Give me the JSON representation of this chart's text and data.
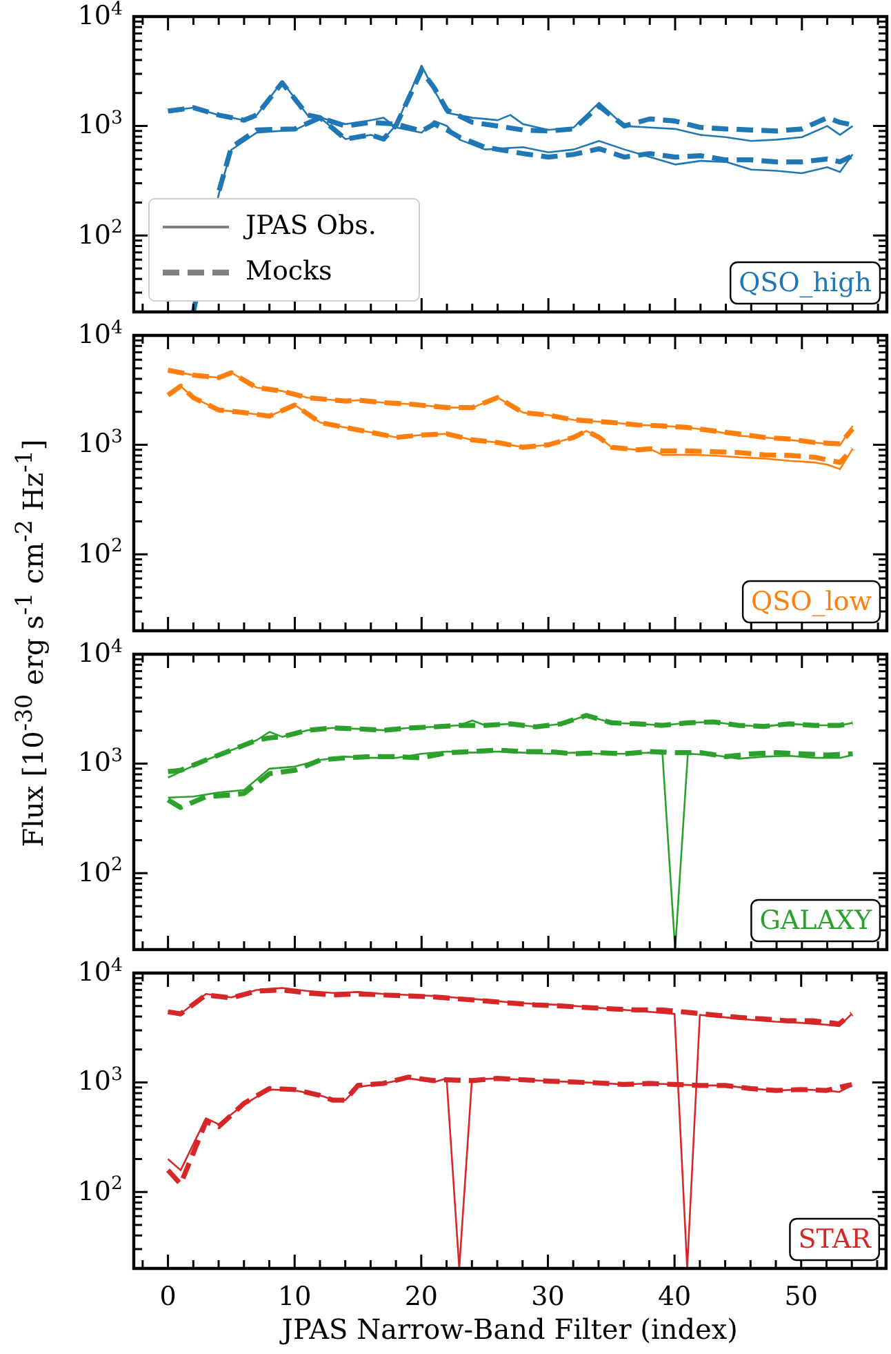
{
  "chart_data": [
    {
      "type": "line",
      "title": "QSO_high",
      "ylabel": "Flux [10$^{-30}$ erg s$^{-1}$ cm$^{-2}$ Hz$^{-1}$]",
      "log": "y",
      "grid": false,
      "marker": "none",
      "legend": "bottom left",
      "tick_labels": "y",
      "xlim": [
        -2.7,
        56.7
      ],
      "ylim": [
        20,
        10000
      ],
      "xticks": [
        {
          "value": -2,
          "label": null
        },
        0,
        {
          "value": 2,
          "label": null
        },
        {
          "value": 4,
          "label": null
        },
        {
          "value": 6,
          "label": null
        },
        {
          "value": 8,
          "label": null
        },
        10,
        {
          "value": 12,
          "label": null
        },
        {
          "value": 14,
          "label": null
        },
        {
          "value": 16,
          "label": null
        },
        {
          "value": 18,
          "label": null
        },
        20,
        {
          "value": 22,
          "label": null
        },
        {
          "value": 24,
          "label": null
        },
        {
          "value": 26,
          "label": null
        },
        {
          "value": 28,
          "label": null
        },
        30,
        {
          "value": 32,
          "label": null
        },
        {
          "value": 34,
          "label": null
        },
        {
          "value": 36,
          "label": null
        },
        {
          "value": 38,
          "label": null
        },
        40,
        {
          "value": 42,
          "label": null
        },
        {
          "value": 44,
          "label": null
        },
        {
          "value": 46,
          "label": null
        },
        {
          "value": 48,
          "label": null
        },
        50,
        {
          "value": 52,
          "label": null
        },
        {
          "value": 54,
          "label": null
        },
        {
          "value": 56,
          "label": null
        }
      ],
      "yticks": [
        {
          "value": 20,
          "label": null
        },
        {
          "value": 30,
          "label": null
        },
        {
          "value": 40,
          "label": null
        },
        {
          "value": 50,
          "label": null
        },
        {
          "value": 60,
          "label": null
        },
        {
          "value": 70,
          "label": null
        },
        {
          "value": 80,
          "label": null
        },
        {
          "value": 90,
          "label": null
        },
        {
          "value": 100,
          "label": "10$^{2}$"
        },
        {
          "value": 200,
          "label": null
        },
        {
          "value": 300,
          "label": null
        },
        {
          "value": 400,
          "label": null
        },
        {
          "value": 500,
          "label": null
        },
        {
          "value": 600,
          "label": null
        },
        {
          "value": 700,
          "label": null
        },
        {
          "value": 800,
          "label": null
        },
        {
          "value": 900,
          "label": null
        },
        {
          "value": 1000,
          "label": "10$^{3}$"
        },
        {
          "value": 2000,
          "label": null
        },
        {
          "value": 3000,
          "label": null
        },
        {
          "value": 4000,
          "label": null
        },
        {
          "value": 5000,
          "label": null
        },
        {
          "value": 6000,
          "label": null
        },
        {
          "value": 7000,
          "label": null
        },
        {
          "value": 8000,
          "label": null
        },
        {
          "value": 9000,
          "label": null
        },
        {
          "value": 10000,
          "label": "10$^{4}$"
        }
      ],
      "series": [
        {
          "color": "#1f77b4",
          "line_style": "solid",
          "x": [
            0,
            2,
            4,
            6,
            7,
            9,
            11,
            12,
            14,
            16,
            17,
            18,
            20,
            21,
            22,
            24,
            26,
            27,
            28,
            30,
            32,
            34,
            36,
            38,
            40,
            42,
            44,
            46,
            48,
            50,
            52,
            53,
            54
          ],
          "values": [
            1370,
            1470,
            1260,
            1130,
            1260,
            2550,
            1260,
            1190,
            760,
            830,
            760,
            1020,
            3560,
            2120,
            1320,
            1190,
            1130,
            1260,
            1040,
            920,
            970,
            1630,
            1000,
            970,
            940,
            830,
            790,
            730,
            750,
            790,
            1000,
            830,
            1000
          ]
        },
        {
          "color": "#1f77b4",
          "line_style": "dashed",
          "x": [
            0,
            2,
            4,
            6,
            7,
            9,
            11,
            12,
            14,
            16,
            17,
            18,
            20,
            21,
            22,
            24,
            26,
            28,
            30,
            32,
            34,
            36,
            38,
            40,
            42,
            44,
            46,
            48,
            50,
            52,
            53,
            54
          ],
          "values": [
            1370,
            1470,
            1260,
            1130,
            1260,
            2480,
            1260,
            1190,
            760,
            830,
            760,
            1020,
            3210,
            2230,
            1400,
            1080,
            1000,
            920,
            900,
            940,
            1520,
            1000,
            1160,
            1110,
            970,
            940,
            920,
            900,
            940,
            1190,
            1080,
            1020
          ]
        },
        {
          "color": "#1f77b4",
          "line_style": "solid",
          "x": [
            2,
            4,
            5,
            7,
            10,
            12,
            14,
            16,
            17,
            18,
            20,
            21,
            22,
            23,
            25,
            28,
            30,
            32,
            34,
            36,
            38,
            40,
            42,
            44,
            46,
            48,
            50,
            52,
            53,
            54
          ],
          "values": [
            20,
            238,
            607,
            870,
            920,
            1190,
            1040,
            1130,
            1190,
            970,
            870,
            1110,
            1000,
            750,
            610,
            640,
            575,
            610,
            730,
            610,
            520,
            445,
            480,
            470,
            400,
            390,
            370,
            420,
            380,
            550
          ]
        },
        {
          "color": "#1f77b4",
          "line_style": "dashed",
          "x": [
            2,
            4,
            5,
            7,
            10,
            12,
            14,
            16,
            18,
            20,
            21,
            22,
            23,
            25,
            28,
            30,
            32,
            34,
            36,
            38,
            40,
            42,
            44,
            46,
            48,
            50,
            52,
            53,
            54
          ],
          "values": [
            20,
            250,
            640,
            920,
            940,
            1190,
            1000,
            1080,
            1040,
            900,
            1040,
            920,
            790,
            640,
            560,
            520,
            550,
            620,
            520,
            560,
            520,
            535,
            490,
            490,
            470,
            470,
            500,
            470,
            535
          ]
        },
        {
          "name": "JPAS Obs.",
          "color": "#7f7f7f",
          "line_style": "solid"
        },
        {
          "name": "Mocks",
          "color": "#7f7f7f",
          "line_style": "dashed"
        }
      ]
    },
    {
      "type": "line",
      "title": "QSO_low",
      "log": "y",
      "grid": false,
      "marker": "none",
      "tick_labels": "y",
      "xlim": [
        -2.7,
        56.7
      ],
      "ylim": [
        20,
        10000
      ],
      "xticks": [
        {
          "value": -2,
          "label": null
        },
        0,
        {
          "value": 2,
          "label": null
        },
        {
          "value": 4,
          "label": null
        },
        {
          "value": 6,
          "label": null
        },
        {
          "value": 8,
          "label": null
        },
        10,
        {
          "value": 12,
          "label": null
        },
        {
          "value": 14,
          "label": null
        },
        {
          "value": 16,
          "label": null
        },
        {
          "value": 18,
          "label": null
        },
        20,
        {
          "value": 22,
          "label": null
        },
        {
          "value": 24,
          "label": null
        },
        {
          "value": 26,
          "label": null
        },
        {
          "value": 28,
          "label": null
        },
        30,
        {
          "value": 32,
          "label": null
        },
        {
          "value": 34,
          "label": null
        },
        {
          "value": 36,
          "label": null
        },
        {
          "value": 38,
          "label": null
        },
        40,
        {
          "value": 42,
          "label": null
        },
        {
          "value": 44,
          "label": null
        },
        {
          "value": 46,
          "label": null
        },
        {
          "value": 48,
          "label": null
        },
        50,
        {
          "value": 52,
          "label": null
        },
        {
          "value": 54,
          "label": null
        },
        {
          "value": 56,
          "label": null
        }
      ],
      "yticks": [
        {
          "value": 20,
          "label": null
        },
        {
          "value": 30,
          "label": null
        },
        {
          "value": 40,
          "label": null
        },
        {
          "value": 50,
          "label": null
        },
        {
          "value": 60,
          "label": null
        },
        {
          "value": 70,
          "label": null
        },
        {
          "value": 80,
          "label": null
        },
        {
          "value": 90,
          "label": null
        },
        {
          "value": 100,
          "label": "10$^{2}$"
        },
        {
          "value": 200,
          "label": null
        },
        {
          "value": 300,
          "label": null
        },
        {
          "value": 400,
          "label": null
        },
        {
          "value": 500,
          "label": null
        },
        {
          "value": 600,
          "label": null
        },
        {
          "value": 700,
          "label": null
        },
        {
          "value": 800,
          "label": null
        },
        {
          "value": 900,
          "label": null
        },
        {
          "value": 1000,
          "label": "10$^{3}$"
        },
        {
          "value": 2000,
          "label": null
        },
        {
          "value": 3000,
          "label": null
        },
        {
          "value": 4000,
          "label": null
        },
        {
          "value": 5000,
          "label": null
        },
        {
          "value": 6000,
          "label": null
        },
        {
          "value": 7000,
          "label": null
        },
        {
          "value": 8000,
          "label": null
        },
        {
          "value": 9000,
          "label": null
        },
        {
          "value": 10000,
          "label": "10$^{4}$"
        }
      ],
      "series": [
        {
          "color": "#ff7f0e",
          "line_style": "solid",
          "x": [
            0,
            2,
            4,
            5,
            7,
            9,
            11,
            14,
            15,
            17,
            19,
            22,
            24,
            26,
            28,
            30,
            32,
            35,
            37,
            39,
            41,
            43,
            45,
            47,
            49,
            51,
            53,
            54
          ],
          "values": [
            4810,
            4330,
            4110,
            4560,
            3330,
            3100,
            2700,
            2510,
            2560,
            2430,
            2360,
            2190,
            2190,
            2700,
            1970,
            1870,
            1690,
            1600,
            1520,
            1490,
            1440,
            1340,
            1210,
            1170,
            1110,
            1050,
            990,
            1490
          ]
        },
        {
          "color": "#ff7f0e",
          "line_style": "dashed",
          "x": [
            0,
            2,
            4,
            5,
            7,
            9,
            11,
            14,
            15,
            17,
            19,
            22,
            24,
            26,
            28,
            30,
            32,
            35,
            37,
            39,
            41,
            43,
            45,
            47,
            49,
            51,
            53,
            54
          ],
          "values": [
            4810,
            4330,
            4110,
            4560,
            3330,
            3100,
            2700,
            2510,
            2560,
            2430,
            2360,
            2190,
            2190,
            2700,
            1970,
            1870,
            1690,
            1600,
            1520,
            1490,
            1440,
            1340,
            1260,
            1170,
            1130,
            1050,
            1020,
            1400
          ]
        },
        {
          "color": "#ff7f0e",
          "line_style": "solid",
          "x": [
            0,
            1,
            2,
            4,
            6,
            8,
            10,
            12,
            14,
            16,
            18,
            20,
            22,
            24,
            26,
            28,
            30,
            32,
            33,
            34,
            35,
            37,
            38,
            39,
            41,
            43,
            45,
            47,
            49,
            51,
            52,
            53,
            54
          ],
          "values": [
            2850,
            3440,
            2700,
            2080,
            1970,
            1830,
            2310,
            1600,
            1440,
            1300,
            1170,
            1230,
            1260,
            1110,
            1050,
            950,
            1000,
            1170,
            1340,
            1170,
            950,
            900,
            920,
            810,
            810,
            800,
            770,
            750,
            715,
            690,
            660,
            600,
            920
          ]
        },
        {
          "color": "#ff7f0e",
          "line_style": "dashed",
          "x": [
            0,
            1,
            2,
            4,
            6,
            8,
            10,
            12,
            14,
            16,
            18,
            20,
            22,
            24,
            26,
            28,
            30,
            32,
            33,
            34,
            35,
            37,
            38,
            39,
            41,
            43,
            45,
            47,
            49,
            51,
            53,
            54
          ],
          "values": [
            2850,
            3440,
            2700,
            2080,
            1970,
            1830,
            2310,
            1600,
            1440,
            1300,
            1170,
            1230,
            1260,
            1110,
            1050,
            950,
            1000,
            1170,
            1340,
            1170,
            950,
            900,
            920,
            880,
            880,
            865,
            850,
            810,
            800,
            770,
            690,
            920
          ]
        }
      ]
    },
    {
      "type": "line",
      "title": "GALAXY",
      "log": "y",
      "grid": false,
      "marker": "none",
      "tick_labels": "y",
      "xlim": [
        -2.7,
        56.7
      ],
      "ylim": [
        20,
        10000
      ],
      "xticks": [
        {
          "value": -2,
          "label": null
        },
        0,
        {
          "value": 2,
          "label": null
        },
        {
          "value": 4,
          "label": null
        },
        {
          "value": 6,
          "label": null
        },
        {
          "value": 8,
          "label": null
        },
        10,
        {
          "value": 12,
          "label": null
        },
        {
          "value": 14,
          "label": null
        },
        {
          "value": 16,
          "label": null
        },
        {
          "value": 18,
          "label": null
        },
        20,
        {
          "value": 22,
          "label": null
        },
        {
          "value": 24,
          "label": null
        },
        {
          "value": 26,
          "label": null
        },
        {
          "value": 28,
          "label": null
        },
        30,
        {
          "value": 32,
          "label": null
        },
        {
          "value": 34,
          "label": null
        },
        {
          "value": 36,
          "label": null
        },
        {
          "value": 38,
          "label": null
        },
        40,
        {
          "value": 42,
          "label": null
        },
        {
          "value": 44,
          "label": null
        },
        {
          "value": 46,
          "label": null
        },
        {
          "value": 48,
          "label": null
        },
        50,
        {
          "value": 52,
          "label": null
        },
        {
          "value": 54,
          "label": null
        },
        {
          "value": 56,
          "label": null
        }
      ],
      "yticks": [
        {
          "value": 20,
          "label": null
        },
        {
          "value": 30,
          "label": null
        },
        {
          "value": 40,
          "label": null
        },
        {
          "value": 50,
          "label": null
        },
        {
          "value": 60,
          "label": null
        },
        {
          "value": 70,
          "label": null
        },
        {
          "value": 80,
          "label": null
        },
        {
          "value": 90,
          "label": null
        },
        {
          "value": 100,
          "label": "10$^{2}$"
        },
        {
          "value": 200,
          "label": null
        },
        {
          "value": 300,
          "label": null
        },
        {
          "value": 400,
          "label": null
        },
        {
          "value": 500,
          "label": null
        },
        {
          "value": 600,
          "label": null
        },
        {
          "value": 700,
          "label": null
        },
        {
          "value": 800,
          "label": null
        },
        {
          "value": 900,
          "label": null
        },
        {
          "value": 1000,
          "label": "10$^{3}$"
        },
        {
          "value": 2000,
          "label": null
        },
        {
          "value": 3000,
          "label": null
        },
        {
          "value": 4000,
          "label": null
        },
        {
          "value": 5000,
          "label": null
        },
        {
          "value": 6000,
          "label": null
        },
        {
          "value": 7000,
          "label": null
        },
        {
          "value": 8000,
          "label": null
        },
        {
          "value": 9000,
          "label": null
        },
        {
          "value": 10000,
          "label": "10$^{4}$"
        }
      ],
      "series": [
        {
          "color": "#2ca02c",
          "line_style": "solid",
          "x": [
            0,
            1,
            3,
            5,
            7,
            8,
            9,
            11,
            13,
            15,
            17,
            19,
            21,
            23,
            24,
            25,
            27,
            29,
            31,
            33,
            35,
            37,
            39,
            41,
            43,
            45,
            47,
            49,
            51,
            53,
            54
          ],
          "values": [
            746,
            845,
            1080,
            1330,
            1640,
            1950,
            1760,
            2020,
            2120,
            2080,
            2020,
            2120,
            2170,
            2240,
            2480,
            2240,
            2310,
            2170,
            2310,
            2760,
            2360,
            2310,
            2240,
            2360,
            2410,
            2240,
            2190,
            2310,
            2240,
            2240,
            2360
          ]
        },
        {
          "color": "#2ca02c",
          "line_style": "dashed",
          "x": [
            0,
            1,
            3,
            5,
            7,
            8,
            9,
            11,
            13,
            15,
            17,
            19,
            21,
            23,
            24,
            25,
            27,
            29,
            31,
            33,
            35,
            37,
            39,
            41,
            43,
            45,
            47,
            49,
            51,
            53,
            54
          ],
          "values": [
            845,
            870,
            1080,
            1330,
            1640,
            1720,
            1760,
            2020,
            2120,
            2080,
            2020,
            2120,
            2170,
            2240,
            2240,
            2240,
            2310,
            2170,
            2310,
            2760,
            2360,
            2310,
            2240,
            2360,
            2410,
            2240,
            2190,
            2310,
            2240,
            2240,
            2360
          ]
        },
        {
          "color": "#2ca02c",
          "line_style": "solid",
          "x": [
            0,
            2,
            4,
            6,
            8,
            10,
            12,
            14,
            16,
            18,
            20,
            22,
            24,
            26,
            28,
            30,
            32,
            34,
            36,
            38,
            39,
            40,
            41,
            43,
            45,
            47,
            49,
            51,
            53,
            54
          ],
          "values": [
            490,
            500,
            545,
            575,
            900,
            940,
            1080,
            1160,
            1130,
            1130,
            1230,
            1290,
            1260,
            1290,
            1260,
            1230,
            1260,
            1230,
            1230,
            1260,
            1230,
            20,
            1230,
            1200,
            1110,
            1160,
            1180,
            1130,
            1130,
            1200
          ]
        },
        {
          "color": "#2ca02c",
          "line_style": "dashed",
          "x": [
            0,
            1,
            3,
            5,
            6,
            8,
            10,
            12,
            14,
            16,
            18,
            20,
            22,
            24,
            26,
            28,
            30,
            32,
            34,
            36,
            38,
            40,
            42,
            44,
            46,
            48,
            50,
            52,
            54
          ],
          "values": [
            466,
            398,
            500,
            517,
            534,
            810,
            870,
            1080,
            1130,
            1160,
            1160,
            1130,
            1260,
            1290,
            1330,
            1290,
            1290,
            1230,
            1260,
            1230,
            1290,
            1260,
            1260,
            1160,
            1230,
            1260,
            1230,
            1200,
            1230
          ]
        }
      ]
    },
    {
      "type": "line",
      "title": "STAR",
      "xlabel": "JPAS Narrow-Band Filter (index)",
      "log": "y",
      "grid": false,
      "marker": "none",
      "xlim": [
        -2.7,
        56.7
      ],
      "ylim": [
        20,
        10000
      ],
      "xticks": [
        {
          "value": -2,
          "label": null
        },
        0,
        {
          "value": 2,
          "label": null
        },
        {
          "value": 4,
          "label": null
        },
        {
          "value": 6,
          "label": null
        },
        {
          "value": 8,
          "label": null
        },
        10,
        {
          "value": 12,
          "label": null
        },
        {
          "value": 14,
          "label": null
        },
        {
          "value": 16,
          "label": null
        },
        {
          "value": 18,
          "label": null
        },
        20,
        {
          "value": 22,
          "label": null
        },
        {
          "value": 24,
          "label": null
        },
        {
          "value": 26,
          "label": null
        },
        {
          "value": 28,
          "label": null
        },
        30,
        {
          "value": 32,
          "label": null
        },
        {
          "value": 34,
          "label": null
        },
        {
          "value": 36,
          "label": null
        },
        {
          "value": 38,
          "label": null
        },
        40,
        {
          "value": 42,
          "label": null
        },
        {
          "value": 44,
          "label": null
        },
        {
          "value": 46,
          "label": null
        },
        {
          "value": 48,
          "label": null
        },
        50,
        {
          "value": 52,
          "label": null
        },
        {
          "value": 54,
          "label": null
        },
        {
          "value": 56,
          "label": null
        }
      ],
      "yticks": [
        {
          "value": 20,
          "label": null
        },
        {
          "value": 30,
          "label": null
        },
        {
          "value": 40,
          "label": null
        },
        {
          "value": 50,
          "label": null
        },
        {
          "value": 60,
          "label": null
        },
        {
          "value": 70,
          "label": null
        },
        {
          "value": 80,
          "label": null
        },
        {
          "value": 90,
          "label": null
        },
        {
          "value": 100,
          "label": "10$^{2}$"
        },
        {
          "value": 200,
          "label": null
        },
        {
          "value": 300,
          "label": null
        },
        {
          "value": 400,
          "label": null
        },
        {
          "value": 500,
          "label": null
        },
        {
          "value": 600,
          "label": null
        },
        {
          "value": 700,
          "label": null
        },
        {
          "value": 800,
          "label": null
        },
        {
          "value": 900,
          "label": null
        },
        {
          "value": 1000,
          "label": "10$^{3}$"
        },
        {
          "value": 2000,
          "label": null
        },
        {
          "value": 3000,
          "label": null
        },
        {
          "value": 4000,
          "label": null
        },
        {
          "value": 5000,
          "label": null
        },
        {
          "value": 6000,
          "label": null
        },
        {
          "value": 7000,
          "label": null
        },
        {
          "value": 8000,
          "label": null
        },
        {
          "value": 9000,
          "label": null
        },
        {
          "value": 10000,
          "label": "10$^{4}$"
        }
      ],
      "series": [
        {
          "color": "#d62728",
          "line_style": "solid",
          "x": [
            0,
            1,
            3,
            5,
            7,
            9,
            11,
            13,
            15,
            17,
            19,
            21,
            23,
            25,
            27,
            29,
            31,
            33,
            35,
            37,
            39,
            40,
            41,
            42,
            44,
            46,
            48,
            50,
            52,
            53,
            54
          ],
          "values": [
            4520,
            4240,
            6440,
            5990,
            7000,
            7310,
            6860,
            6580,
            6720,
            6440,
            6310,
            6180,
            5930,
            5690,
            5400,
            5220,
            5120,
            4910,
            4710,
            4520,
            4330,
            4240,
            20,
            4150,
            3940,
            3740,
            3590,
            3510,
            3370,
            3270,
            4240
          ]
        },
        {
          "color": "#d62728",
          "line_style": "dashed",
          "x": [
            0,
            1,
            3,
            5,
            7,
            9,
            11,
            13,
            15,
            17,
            19,
            21,
            23,
            25,
            27,
            29,
            31,
            33,
            35,
            37,
            39,
            41,
            43,
            45,
            47,
            49,
            51,
            53,
            54
          ],
          "values": [
            4420,
            4240,
            6310,
            5930,
            6860,
            7000,
            6580,
            6310,
            6440,
            6310,
            6180,
            6050,
            5800,
            5570,
            5330,
            5120,
            5010,
            4850,
            4710,
            4610,
            4610,
            4380,
            4150,
            3940,
            3810,
            3660,
            3660,
            3440,
            4240
          ]
        },
        {
          "color": "#d62728",
          "line_style": "solid",
          "x": [
            0,
            1,
            3,
            4,
            6,
            8,
            10,
            12,
            13,
            14,
            15,
            17,
            19,
            21,
            22,
            23,
            24,
            26,
            28,
            30,
            32,
            34,
            36,
            38,
            40,
            42,
            44,
            46,
            48,
            50,
            52,
            53,
            54
          ],
          "values": [
            200,
            158,
            471,
            415,
            631,
            863,
            846,
            762,
            700,
            690,
            910,
            980,
            1090,
            1010,
            1090,
            20,
            1060,
            1090,
            1060,
            1030,
            1010,
            990,
            960,
            980,
            960,
            940,
            940,
            880,
            846,
            863,
            846,
            820,
            940
          ]
        },
        {
          "color": "#d62728",
          "line_style": "dashed",
          "x": [
            0,
            1,
            3,
            4,
            6,
            8,
            10,
            12,
            13,
            14,
            15,
            17,
            19,
            21,
            22,
            24,
            26,
            28,
            30,
            32,
            34,
            36,
            38,
            40,
            42,
            44,
            46,
            48,
            50,
            52,
            54
          ],
          "values": [
            158,
            118,
            438,
            394,
            645,
            880,
            863,
            762,
            690,
            690,
            940,
            980,
            1120,
            1040,
            1060,
            1040,
            1090,
            1060,
            1030,
            1010,
            990,
            960,
            980,
            960,
            940,
            940,
            880,
            846,
            863,
            846,
            960
          ]
        }
      ]
    }
  ]
}
